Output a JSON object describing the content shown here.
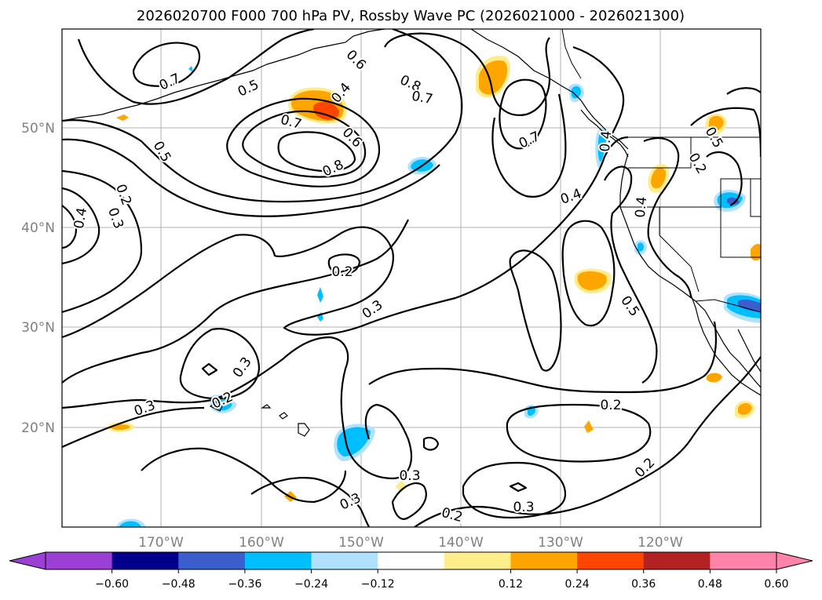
{
  "title": "2026020700 F000 700 hPa PV, Rossby Wave PC (2026021000 - 2026021300)",
  "map": {
    "lon_labels": [
      "170°W",
      "160°W",
      "150°W",
      "140°W",
      "130°W",
      "120°W"
    ],
    "lat_labels": [
      "50°N",
      "40°N",
      "30°N",
      "20°N"
    ]
  },
  "contour_labels": [
    {
      "text": "0.7",
      "name": "contour-label-0-7-nw"
    },
    {
      "text": "0.5",
      "name": "contour-label-0-5-north"
    },
    {
      "text": "0.6",
      "name": "contour-label-0-6-north"
    },
    {
      "text": "0.8",
      "name": "contour-label-0-8-ne"
    },
    {
      "text": "0.7",
      "name": "contour-label-0-7-ne"
    },
    {
      "text": "0.4",
      "name": "contour-label-0-4-north"
    },
    {
      "text": "0.7",
      "name": "contour-label-0-7-center"
    },
    {
      "text": "0.6",
      "name": "contour-label-0-6-center"
    },
    {
      "text": "0.8",
      "name": "contour-label-0-8-center"
    },
    {
      "text": "0.5",
      "name": "contour-label-0-5-west"
    },
    {
      "text": "0.2",
      "name": "contour-label-0-2-west"
    },
    {
      "text": "0.3",
      "name": "contour-label-0-3-west"
    },
    {
      "text": "0.4",
      "name": "contour-label-0-4-west"
    },
    {
      "text": "0.7",
      "name": "contour-label-0-7-east"
    },
    {
      "text": "0.4",
      "name": "contour-label-0-4-coast"
    },
    {
      "text": "0.4",
      "name": "contour-label-0-4-east"
    },
    {
      "text": "0.2",
      "name": "contour-label-0-2-calif"
    },
    {
      "text": "0.5",
      "name": "contour-label-0-5-inland"
    },
    {
      "text": "0.4",
      "name": "contour-label-0-4-inland"
    },
    {
      "text": "0.2",
      "name": "contour-label-0-2-center"
    },
    {
      "text": "0.3",
      "name": "contour-label-0-3-center"
    },
    {
      "text": "0.5",
      "name": "contour-label-0-5-baja"
    },
    {
      "text": "0.3",
      "name": "contour-label-0-3-hawaii"
    },
    {
      "text": "0.2",
      "name": "contour-label-0-2-hawaii"
    },
    {
      "text": "0.3",
      "name": "contour-label-0-3-sw"
    },
    {
      "text": "0.2",
      "name": "contour-label-0-2-east-sub"
    },
    {
      "text": "0.3",
      "name": "contour-label-0-3-south"
    },
    {
      "text": "0.3",
      "name": "contour-label-0-3-south2"
    },
    {
      "text": "0.2",
      "name": "contour-label-0-2-south"
    },
    {
      "text": "0.3",
      "name": "contour-label-0-3-southc"
    },
    {
      "text": "0.2",
      "name": "contour-label-0-2-se"
    }
  ],
  "colorbar": {
    "ticks": [
      "−0.60",
      "−0.48",
      "−0.36",
      "−0.24",
      "−0.12",
      "0.12",
      "0.24",
      "0.36",
      "0.48",
      "0.60"
    ],
    "colors": {
      "under": "#9b3fd5",
      "bins": [
        "#9b3fd5",
        "#00008b",
        "#3a5fcd",
        "#00bfff",
        "#b0e2ff",
        "#ffffff",
        "#ffec8b",
        "#ffa500",
        "#ff4500",
        "#b22222"
      ],
      "over": "#ff83aa"
    }
  }
}
